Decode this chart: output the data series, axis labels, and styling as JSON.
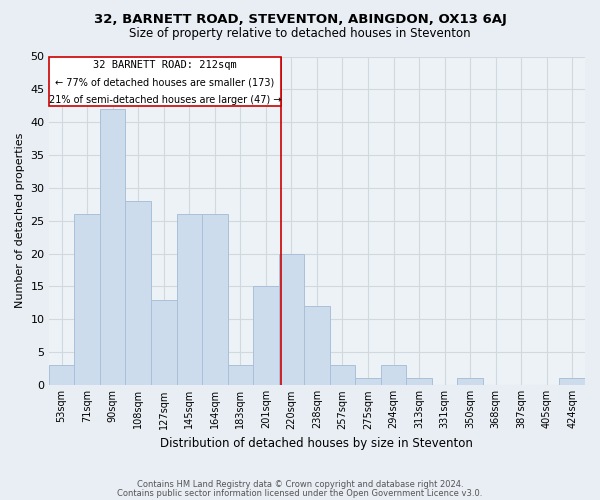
{
  "title": "32, BARNETT ROAD, STEVENTON, ABINGDON, OX13 6AJ",
  "subtitle": "Size of property relative to detached houses in Steventon",
  "xlabel": "Distribution of detached houses by size in Steventon",
  "ylabel": "Number of detached properties",
  "categories": [
    "53sqm",
    "71sqm",
    "90sqm",
    "108sqm",
    "127sqm",
    "145sqm",
    "164sqm",
    "183sqm",
    "201sqm",
    "220sqm",
    "238sqm",
    "257sqm",
    "275sqm",
    "294sqm",
    "313sqm",
    "331sqm",
    "350sqm",
    "368sqm",
    "387sqm",
    "405sqm",
    "424sqm"
  ],
  "values": [
    3,
    26,
    42,
    28,
    13,
    26,
    26,
    3,
    15,
    20,
    12,
    3,
    1,
    3,
    1,
    0,
    1,
    0,
    0,
    0,
    1
  ],
  "bar_color": "#ccdcec",
  "bar_edge_color": "#aac0d8",
  "annotation_title": "32 BARNETT ROAD: 212sqm",
  "annotation_line1": "← 77% of detached houses are smaller (173)",
  "annotation_line2": "21% of semi-detached houses are larger (47) →",
  "ref_line_color": "#cc0000",
  "ylim": [
    0,
    50
  ],
  "yticks": [
    0,
    5,
    10,
    15,
    20,
    25,
    30,
    35,
    40,
    45,
    50
  ],
  "footnote1": "Contains HM Land Registry data © Crown copyright and database right 2024.",
  "footnote2": "Contains public sector information licensed under the Open Government Licence v3.0.",
  "background_color": "#e8eef4",
  "grid_color": "#d0d8e0",
  "plot_bg_color": "#edf2f7"
}
